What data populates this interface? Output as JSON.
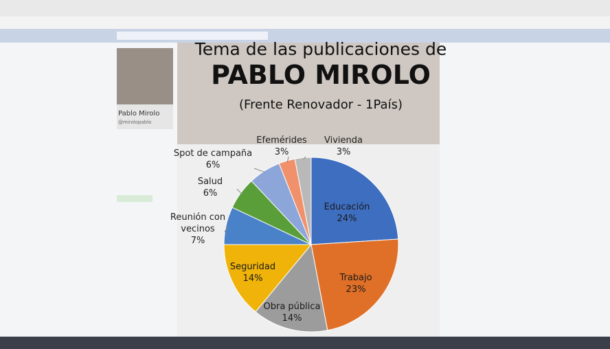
{
  "background": {
    "profile_name": "Pablo Mirolo",
    "profile_handle": "@mirolopablo"
  },
  "chart_data": {
    "type": "pie",
    "title": "Tema de las publicaciones de",
    "subtitle": "PABLO MIROLO",
    "annotation": "(Frente Renovador - 1País)",
    "categories": [
      "Educación",
      "Trabajo",
      "Obra pública",
      "Seguridad",
      "Reunión con vecinos",
      "Salud",
      "Spot de campaña",
      "Efemérides",
      "Vivienda"
    ],
    "values": [
      24,
      23,
      14,
      14,
      7,
      6,
      6,
      3,
      3
    ],
    "value_labels": [
      "24%",
      "23%",
      "14%",
      "14%",
      "7%",
      "6%",
      "6%",
      "3%",
      "3%"
    ],
    "colors": [
      "#3e6ec0",
      "#e07028",
      "#9c9c9c",
      "#efb30a",
      "#4a82c9",
      "#5a9e3a",
      "#8da6da",
      "#f0916c",
      "#b9b9b9"
    ]
  }
}
